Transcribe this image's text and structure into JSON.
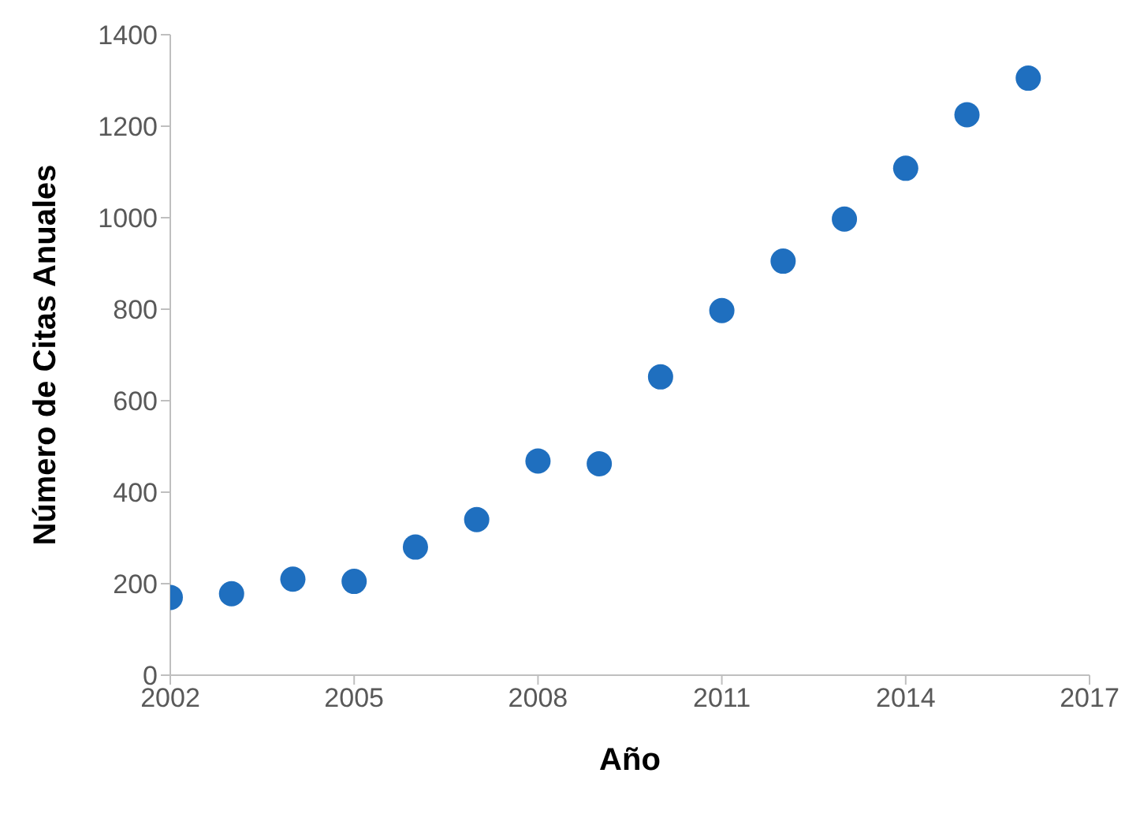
{
  "chart_data": {
    "type": "scatter",
    "xlabel": "Año",
    "ylabel": "Número de Citas Anuales",
    "x": [
      2002,
      2003,
      2004,
      2005,
      2006,
      2007,
      2008,
      2009,
      2010,
      2011,
      2012,
      2013,
      2014,
      2015,
      2016
    ],
    "values": [
      170,
      178,
      210,
      205,
      280,
      340,
      468,
      462,
      652,
      797,
      905,
      997,
      1108,
      1225,
      1305
    ],
    "color": "#1f6fbf",
    "marker": "circle",
    "xlim": [
      2002,
      2017
    ],
    "xticks": [
      2002,
      2005,
      2008,
      2011,
      2014,
      2017
    ],
    "ylim": [
      0,
      1400
    ],
    "yticks": [
      0,
      200,
      400,
      600,
      800,
      1000,
      1200,
      1400
    ],
    "grid": false,
    "legend": false
  }
}
